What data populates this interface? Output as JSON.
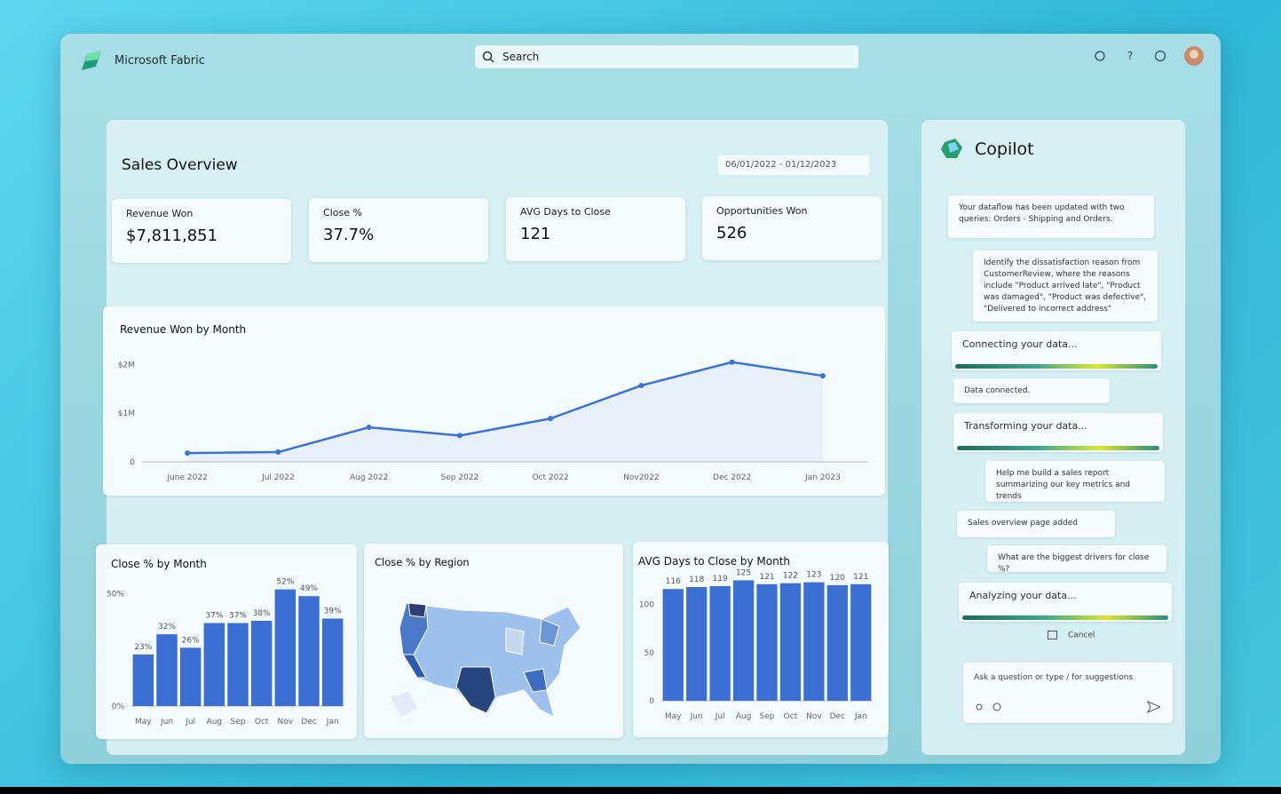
{
  "app": {
    "name": "Microsoft Fabric",
    "search": "Search"
  },
  "dashboard": {
    "title": "Sales Overview",
    "date_range": "06/01/2022 - 01/12/2023",
    "kpis": [
      {
        "label": "Revenue Won",
        "value": "$7,811,851"
      },
      {
        "label": "Close %",
        "value": "37.7%"
      },
      {
        "label": "AVG Days to Close",
        "value": "121"
      },
      {
        "label": "Opportunities Won",
        "value": "526"
      }
    ],
    "region_map_title": "Close % by Region"
  },
  "chart_data": [
    {
      "type": "line",
      "title": "Revenue Won by Month",
      "categories": [
        "June 2022",
        "Jul 2022",
        "Aug 2022",
        "Sep 2022",
        "Oct 2022",
        "Nov2022",
        "Dec 2022",
        "Jan 2023"
      ],
      "values": [
        180000,
        200000,
        710000,
        540000,
        890000,
        1570000,
        2050000,
        1770000
      ],
      "color": "#3a72d6",
      "ylim": [
        0,
        2100000
      ],
      "yticks": [
        0,
        {
          "value": 1000000,
          "label": "$1M"
        },
        {
          "value": 2000000,
          "label": "$2M"
        }
      ]
    },
    {
      "type": "bar",
      "title": "Close % by Month",
      "categories": [
        "May",
        "Jun",
        "Jul",
        "Aug",
        "Sep",
        "Oct",
        "Nov",
        "Dec",
        "Jan"
      ],
      "values": [
        23,
        32,
        26,
        37,
        37,
        38,
        52,
        49,
        39
      ],
      "value_labels": [
        "23%",
        "32%",
        "26%",
        "37%",
        "37%",
        "38%",
        "52%",
        "49%",
        "39%"
      ],
      "color": "#3b6fd4",
      "ylim": [
        0,
        57
      ],
      "yticks": [
        {
          "value": 0,
          "label": "0%"
        },
        {
          "value": 50,
          "label": "50%"
        }
      ]
    },
    {
      "type": "bar",
      "title": "AVG Days to Close by Month",
      "categories": [
        "May",
        "Jun",
        "Jul",
        "Aug",
        "Sep",
        "Oct",
        "Nov",
        "Dec",
        "Jan"
      ],
      "values": [
        116,
        118,
        119,
        125,
        121,
        122,
        123,
        120,
        121
      ],
      "color": "#3b6fd4",
      "ylim": [
        0,
        130
      ],
      "yticks": [
        0,
        50,
        100
      ]
    }
  ],
  "copilot": {
    "title": "Copilot",
    "messages": [
      "Your dataflow has been updated with two queries:  Orders - Shipping and Orders.",
      "Identify the dissatisfaction reason from CustomerReview, where the reasons include \"Product arrived late\", \"Product was damaged\", \"Product was defective\", \"Delivered to incorrect address\"",
      "Connecting your data...",
      "Data connected.",
      "Transforming your data...",
      "Help me build a sales report summarizing our key metrics and trends",
      "Sales overview page added",
      "What are the biggest drivers for close %?",
      "Analyzing your data..."
    ],
    "cancel": "Cancel",
    "input_placeholder": "Ask a question or type / for suggestions"
  }
}
